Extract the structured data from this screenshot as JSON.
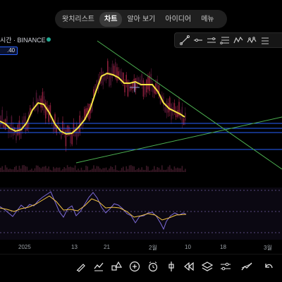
{
  "header": {
    "tabs": [
      {
        "label": "왓치리스트",
        "active": false
      },
      {
        "label": "차트",
        "active": true
      },
      {
        "label": "알아 보기",
        "active": false
      },
      {
        "label": "아이디어",
        "active": false
      },
      {
        "label": "메뉴",
        "active": false
      }
    ]
  },
  "symbol": {
    "label": "시간 · BINANCE",
    "price_badge": ".40",
    "live_color": "#22ab94"
  },
  "drawing_toolbar": {
    "tools": [
      "trend-line-icon",
      "horizontal-ray-icon",
      "parallel-channel-icon",
      "fib-retracement-icon",
      "pitchfork-icon",
      "pattern-icon",
      "more-tools-icon"
    ]
  },
  "time_axis": {
    "labels": [
      {
        "text": "2025"
      },
      {
        "text": "13"
      },
      {
        "text": "21"
      },
      {
        "text": "2월"
      },
      {
        "text": "10"
      },
      {
        "text": "18"
      },
      {
        "text": "3월"
      }
    ]
  },
  "bottom_toolbar": {
    "icons": [
      "brush-icon",
      "indicators-icon",
      "shapes-icon",
      "add-icon",
      "alert-clock-icon",
      "replay-pin-icon",
      "rewind-icon",
      "layers-icon",
      "settings-sliders-icon",
      "trend-icon",
      "undo-icon"
    ]
  },
  "colors": {
    "background": "#000000",
    "ma_line": "#f5e642",
    "horizontal_levels": "#2962ff",
    "trendlines": "#4caf50",
    "oscillator": "#7e6bd9",
    "oscillator_signal": "#f5c542",
    "candle_up": "#8a1f3a",
    "candle_down": "#4a1530"
  }
}
